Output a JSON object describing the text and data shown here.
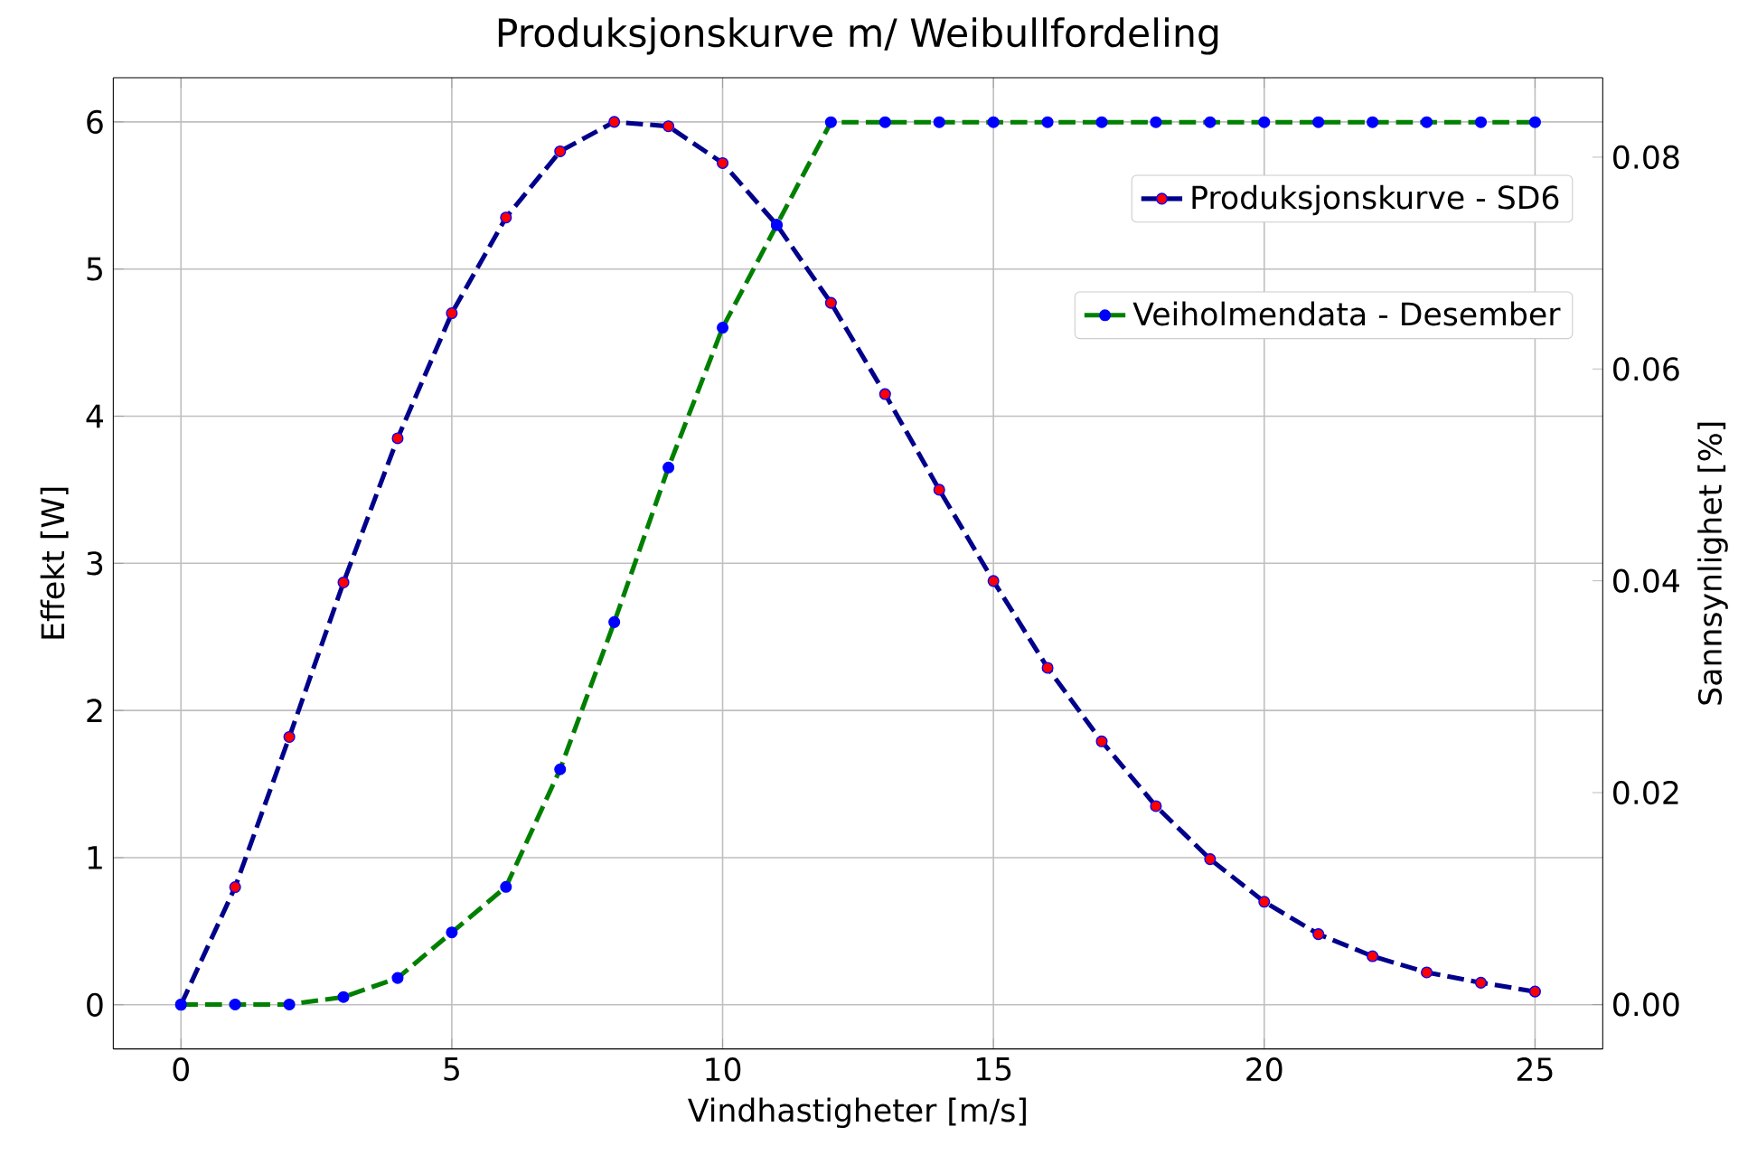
{
  "chart_data": {
    "type": "line",
    "title": "Produksjonskurve m/ Weibullfordeling",
    "xlabel": "Vindhastigheter [m/s]",
    "ylabel": "Effekt [W]",
    "y2label": "Sannsynlighet [%]",
    "x": [
      0,
      1,
      2,
      3,
      4,
      5,
      6,
      7,
      8,
      9,
      10,
      11,
      12,
      13,
      14,
      15,
      16,
      17,
      18,
      19,
      20,
      21,
      22,
      23,
      24,
      25
    ],
    "series": [
      {
        "name": "Produksjonskurve - SD6",
        "color": "#00008b",
        "axis": "y",
        "values": [
          0,
          0.8,
          1.82,
          2.87,
          3.85,
          4.7,
          5.35,
          5.8,
          6.0,
          5.97,
          5.72,
          5.3,
          4.77,
          4.15,
          3.5,
          2.88,
          2.29,
          1.79,
          1.35,
          0.99,
          0.7,
          0.48,
          0.33,
          0.22,
          0.15,
          0.09
        ]
      },
      {
        "name": "Veiholmendata - Desember",
        "color": "#008000",
        "axis": "y2",
        "values": [
          0,
          0,
          0,
          0.0007,
          0.0025,
          0.0068,
          0.0111,
          0.0222,
          0.0361,
          0.0507,
          0.0639,
          0.0736,
          0.0833,
          0.0833,
          0.0833,
          0.0833,
          0.0833,
          0.0833,
          0.0833,
          0.0833,
          0.0833,
          0.0833,
          0.0833,
          0.0833,
          0.0833,
          0.0833
        ]
      }
    ],
    "xlim": [
      -1.25,
      26.25
    ],
    "xticks": [
      0,
      5,
      10,
      15,
      20,
      25
    ],
    "ylim": [
      -0.3,
      6.3
    ],
    "yticks": [
      0,
      1,
      2,
      3,
      4,
      5,
      6
    ],
    "y2lim": [
      -0.0042,
      0.0875
    ],
    "y2ticks": [
      {
        "value": 0,
        "label": "0.00"
      },
      {
        "value": 0.02,
        "label": "0.02"
      },
      {
        "value": 0.04,
        "label": "0.04"
      },
      {
        "value": 0.06,
        "label": "0.06"
      },
      {
        "value": 0.08,
        "label": "0.08"
      }
    ],
    "grid": true,
    "legend": "top right",
    "marker": "circle",
    "line_style": "dashed"
  }
}
